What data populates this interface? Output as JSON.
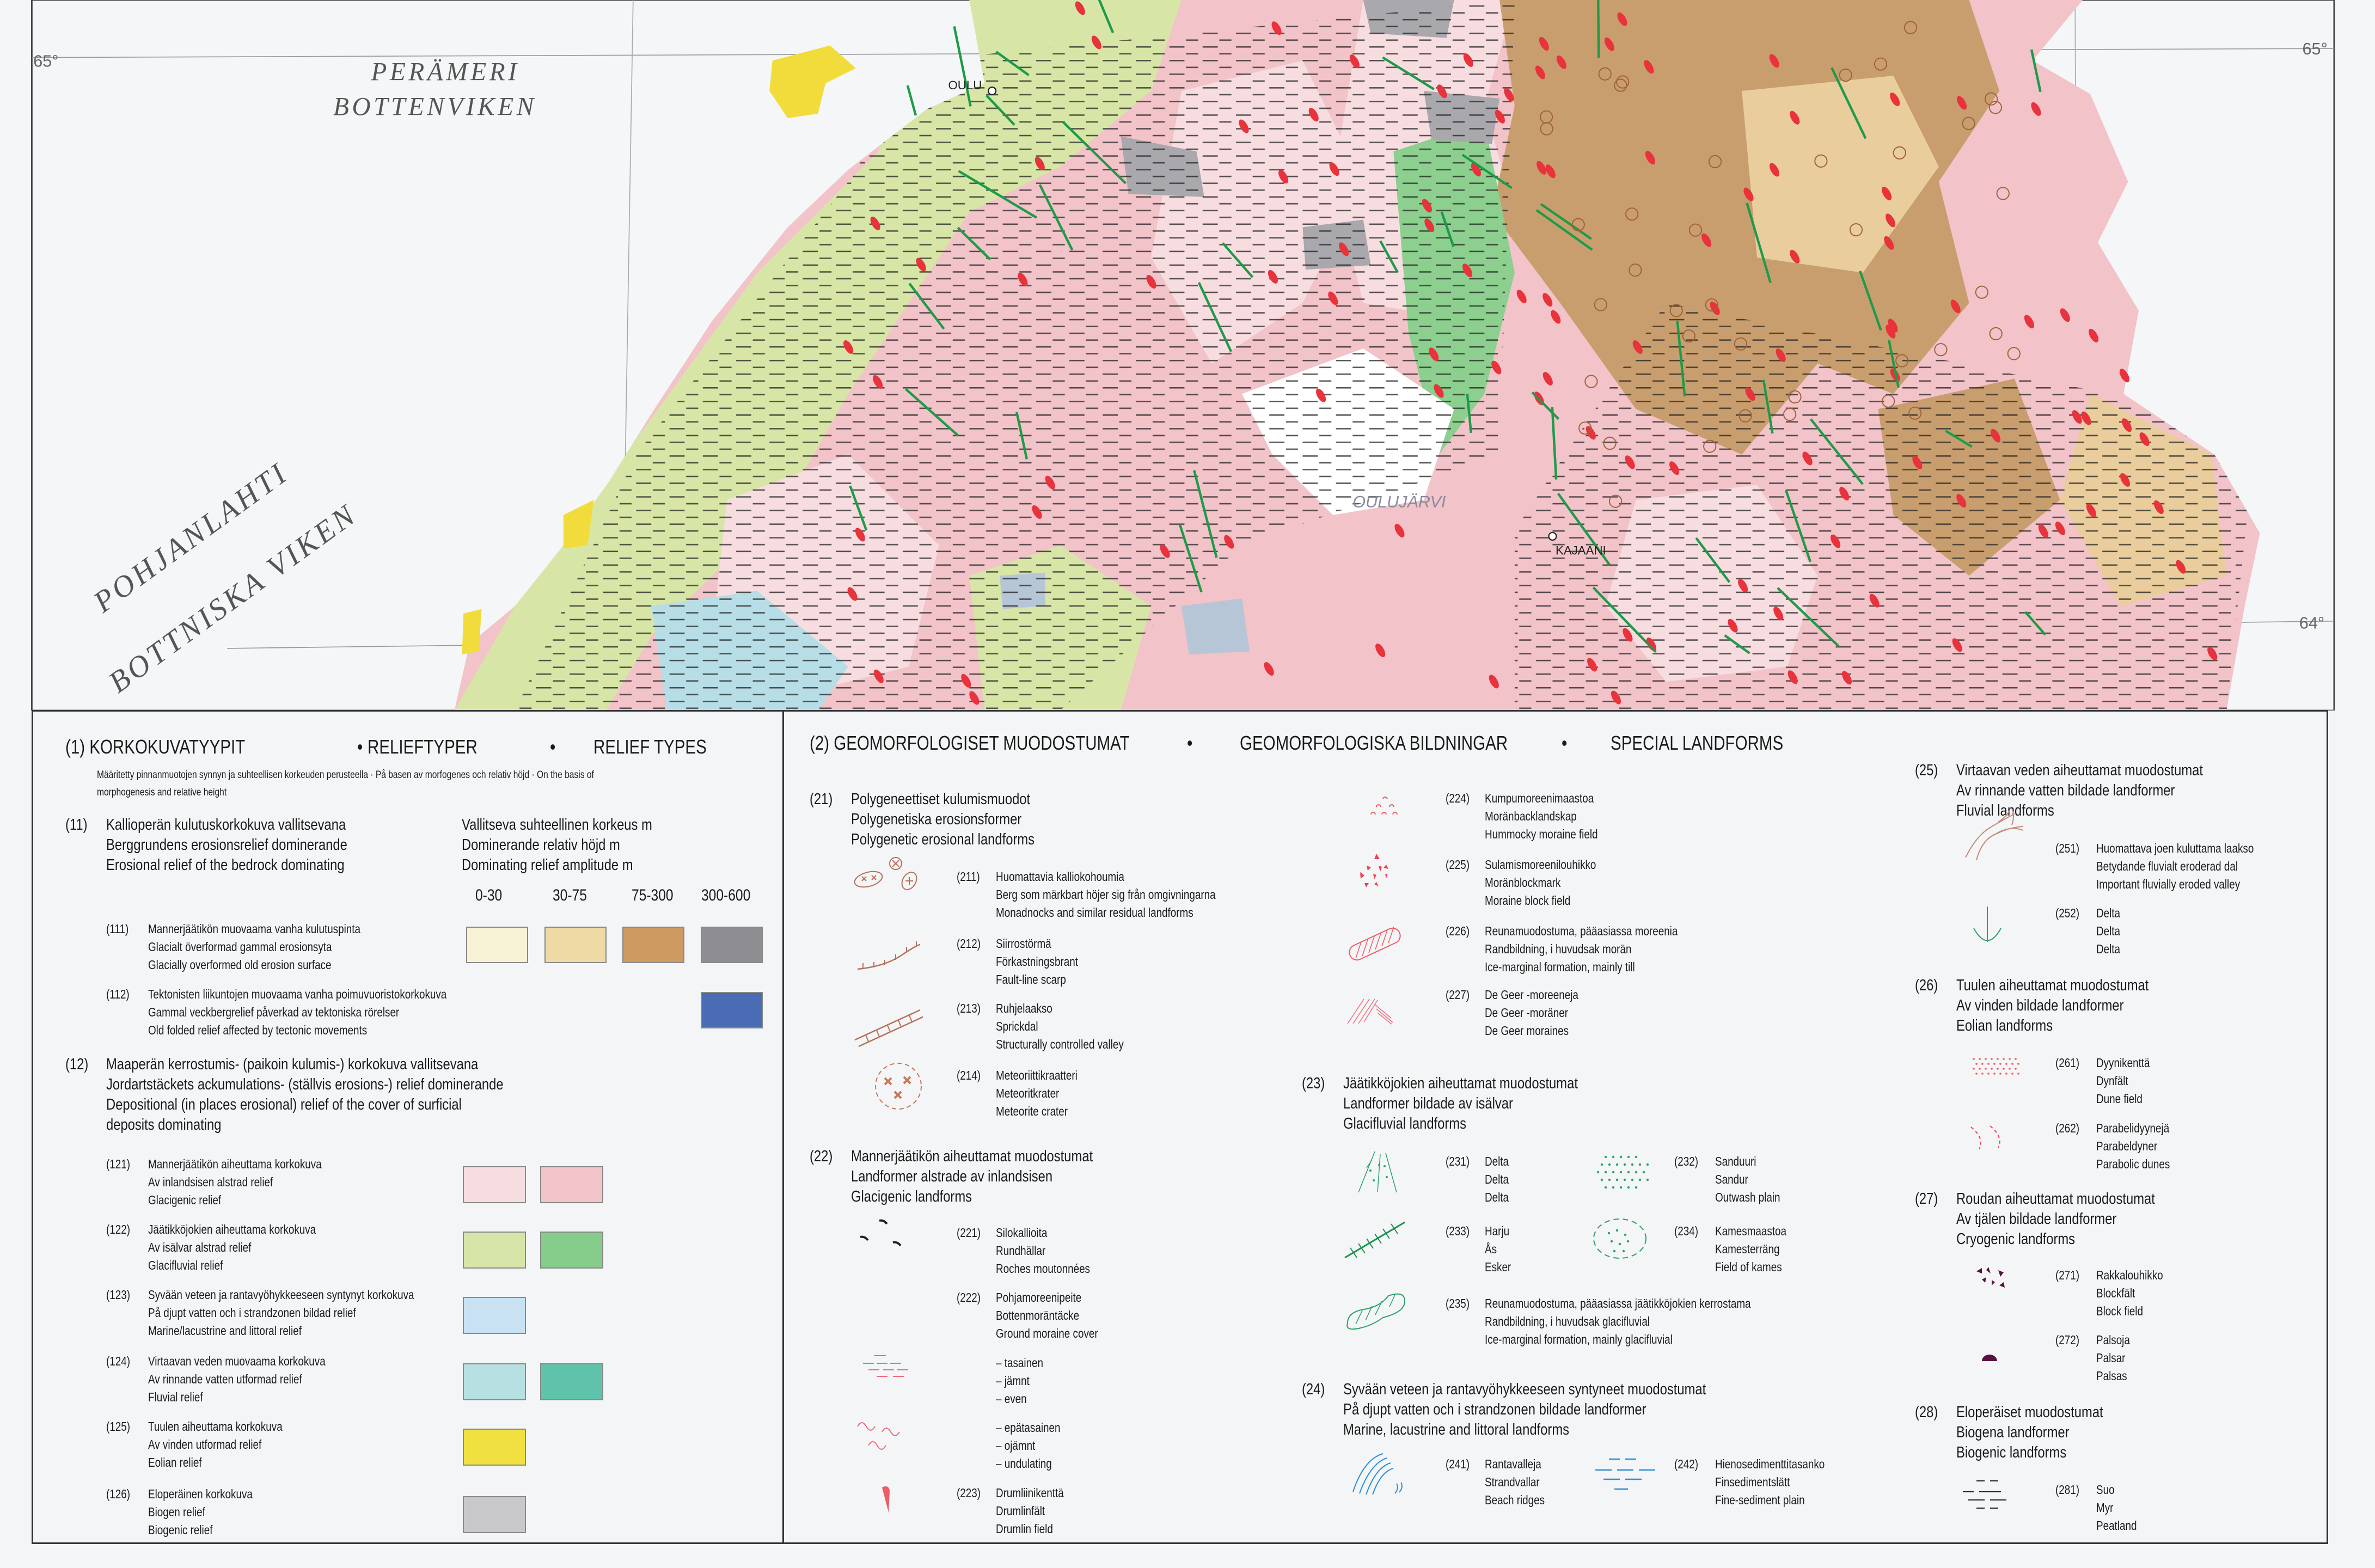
{
  "map": {
    "sea_labels": [
      {
        "lines": [
          "PERÄMERI",
          "BOTTENVIKEN"
        ]
      },
      {
        "lines": [
          "POHJANLAHTI",
          "BOTTNISKA VIKEN"
        ]
      }
    ],
    "places": [
      "OULU",
      "KAJAANI"
    ],
    "lake": "OULUJÄRVI",
    "latitudes": {
      "left_65": "65°",
      "right_65": "65°",
      "right_64": "64°"
    },
    "colors": {
      "land_pink": "#f2c3c8",
      "pale_pink": "#f7dde0",
      "light_green": "#d7e6a6",
      "green": "#8ccf8f",
      "brown": "#c99e6e",
      "tan": "#e9cd9c",
      "grey": "#a8a8ad",
      "blue_grey": "#b7c6d6",
      "yellow": "#f2dc3c",
      "drumlin_red": "#e8323c",
      "esker_green": "#1f9a4a"
    }
  },
  "relief": {
    "title": [
      "(1) KORKOKUVATYYPIT",
      "RELIEFTYPER",
      "RELIEF TYPES"
    ],
    "note": [
      "Määritetty pinnanmuotojen synnyn ja suhteellisen korkeuden perusteella · På basen av morfogenes och relativ höjd · On the basis  of",
      "morphogenesis and relative height"
    ],
    "groups": [
      {
        "code": "(11)",
        "lines": [
          "Kallioperän kulutuskorkokuva vallitsevana",
          "Berggrundens erosionsrelief dominerande",
          "Erosional relief of the bedrock dominating"
        ],
        "amplitude_header": [
          "Vallitseva suhteellinen korkeus m",
          "Dominerande relativ höjd m",
          "Dominating relief amplitude m"
        ],
        "ranges": [
          "0-30",
          "30-75",
          "75-300",
          "300-600"
        ],
        "items": [
          {
            "code": "(111)",
            "lines": [
              "Mannerjäätikön muovaama vanha kulutuspinta",
              "Glacialt överformad gammal erosionsyta",
              "Glacially overformed old erosion surface"
            ],
            "swatches": [
              "#f7f2d6",
              "#efd9a4",
              "#cf9a62",
              "#8e8e92"
            ]
          },
          {
            "code": "(112)",
            "lines": [
              "Tektonisten liikuntojen muovaama vanha poimuvuoristokorkokuva",
              "Gammal veckbergrelief påverkad av tektoniska rörelser",
              "Old folded relief affected by tectonic movements"
            ],
            "swatches": [
              "",
              "",
              "",
              "#4a6cb4"
            ]
          }
        ]
      },
      {
        "code": "(12)",
        "lines": [
          "Maaperän kerrostumis- (paikoin kulumis-) korkokuva vallitsevana",
          "Jordartstäckets ackumulations- (ställvis erosions-) relief dominerande",
          "Depositional (in places erosional) relief of the cover of surficial",
          "deposits dominating"
        ],
        "items": [
          {
            "code": "(121)",
            "lines": [
              "Mannerjäätikön aiheuttama korkokuva",
              "Av inlandsisen alstrad relief",
              "Glacigenic relief"
            ],
            "swatches": [
              "#f6dde0",
              "#f2c3c8"
            ]
          },
          {
            "code": "(122)",
            "lines": [
              "Jäätikköjokien aiheuttama korkokuva",
              "Av isälvar alstrad relief",
              "Glacifluvial relief"
            ],
            "swatches": [
              "#d6e6a8",
              "#86cc8a"
            ]
          },
          {
            "code": "(123)",
            "lines": [
              "Syvään veteen ja rantavyöhykkeeseen syntynyt korkokuva",
              "På djupt vatten och i strandzonen bildad relief",
              "Marine/lacustrine and littoral relief"
            ],
            "swatches": [
              "#c8e2f4"
            ]
          },
          {
            "code": "(124)",
            "lines": [
              "Virtaavan veden muovaama korkokuva",
              "Av rinnande vatten utformad relief",
              "Fluvial relief"
            ],
            "swatches": [
              "#b7e0e2",
              "#5fc3ac"
            ]
          },
          {
            "code": "(125)",
            "lines": [
              "Tuulen aiheuttama korkokuva",
              "Av vinden utformad relief",
              "Eolian relief"
            ],
            "swatches": [
              "#f0e040"
            ]
          },
          {
            "code": "(126)",
            "lines": [
              "Eloperäinen korkokuva",
              "Biogen relief",
              "Biogenic relief"
            ],
            "swatches": [
              "#c8c8ca"
            ]
          }
        ]
      }
    ]
  },
  "landforms": {
    "title": [
      "(2) GEOMORFOLOGISET MUODOSTUMAT",
      "GEOMORFOLOGISKA BILDNINGAR",
      "SPECIAL LANDFORMS"
    ],
    "groups": [
      {
        "code": "(21)",
        "lines": [
          "Polygeneettiset kulumismuodot",
          "Polygenetiska erosionsformer",
          "Polygenetic erosional landforms"
        ],
        "items": [
          {
            "code": "(211)",
            "symbol": "monadnock-icon",
            "lines": [
              "Huomattavia kalliokohoumia",
              "Berg som märkbart höjer sig från omgivningarna",
              "Monadnocks and similar residual landforms"
            ]
          },
          {
            "code": "(212)",
            "symbol": "fault-scarp-icon",
            "lines": [
              "Siirrostörmä",
              "Förkastningsbrant",
              "Fault-line scarp"
            ]
          },
          {
            "code": "(213)",
            "symbol": "structural-valley-icon",
            "lines": [
              "Ruhjelaakso",
              "Sprickdal",
              "Structurally controlled valley"
            ]
          },
          {
            "code": "(214)",
            "symbol": "meteorite-crater-icon",
            "lines": [
              "Meteoriittikraatteri",
              "Meteoritkrater",
              "Meteorite crater"
            ]
          }
        ]
      },
      {
        "code": "(22)",
        "lines": [
          "Mannerjäätikön aiheuttamat muodostumat",
          "Landformer alstrade av inlandsisen",
          "Glacigenic landforms"
        ],
        "items": [
          {
            "code": "(221)",
            "symbol": "roches-moutonnees-icon",
            "lines": [
              "Silokallioita",
              "Rundhällar",
              "Roches moutonnées"
            ]
          },
          {
            "code": "(222)",
            "symbol": "",
            "lines": [
              "Pohjamoreenipeite",
              "Bottenmoräntäcke",
              "Ground moraine cover"
            ]
          },
          {
            "code": "",
            "symbol": "even-moraine-icon",
            "lines": [
              "– tasainen",
              "– jämnt",
              "– even"
            ]
          },
          {
            "code": "",
            "symbol": "undulating-moraine-icon",
            "lines": [
              "– epätasainen",
              "– ojämnt",
              "– undulating"
            ]
          },
          {
            "code": "(223)",
            "symbol": "drumlin-icon",
            "lines": [
              "Drumliinikenttä",
              "Drumlinfält",
              "Drumlin field"
            ]
          },
          {
            "code": "(224)",
            "symbol": "hummocky-moraine-icon",
            "lines": [
              "Kumpumoreenimaastoa",
              "Moränbacklandskap",
              "Hummocky moraine field"
            ]
          },
          {
            "code": "(225)",
            "symbol": "moraine-block-icon",
            "lines": [
              "Sulamismoreenilouhikko",
              "Moränblockmark",
              "Moraine block field"
            ]
          },
          {
            "code": "(226)",
            "symbol": "ice-marginal-till-icon",
            "lines": [
              "Reunamuodostuma, pääasiassa moreenia",
              "Randbildning, i huvudsak morän",
              "Ice-marginal formation, mainly till"
            ]
          },
          {
            "code": "(227)",
            "symbol": "de-geer-moraine-icon",
            "lines": [
              "De Geer -moreeneja",
              "De Geer -moräner",
              "De Geer moraines"
            ]
          }
        ]
      },
      {
        "code": "(23)",
        "lines": [
          "Jäätikköjokien aiheuttamat muodostumat",
          "Landformer bildade av isälvar",
          "Glacifluvial landforms"
        ],
        "items": [
          {
            "code": "(231)",
            "symbol": "glacifluvial-delta-icon",
            "lines": [
              "Delta",
              "Delta",
              "Delta"
            ]
          },
          {
            "code": "(232)",
            "symbol": "outwash-plain-icon",
            "lines": [
              "Sanduuri",
              "Sandur",
              "Outwash plain"
            ]
          },
          {
            "code": "(233)",
            "symbol": "esker-icon",
            "lines": [
              "Harju",
              "Ås",
              "Esker"
            ]
          },
          {
            "code": "(234)",
            "symbol": "kames-icon",
            "lines": [
              "Kamesmaastoa",
              "Kamesterräng",
              "Field of kames"
            ]
          },
          {
            "code": "(235)",
            "symbol": "ice-marginal-glacifluvial-icon",
            "lines": [
              "Reunamuodostuma, pääasiassa jäätikköjokien kerrostama",
              "Randbildning, i huvudsak glacifluvial",
              "Ice-marginal formation, mainly glacifluvial"
            ]
          }
        ]
      },
      {
        "code": "(24)",
        "lines": [
          "Syvään veteen ja rantavyöhykkeeseen syntyneet muodostumat",
          "På djupt vatten och i strandzonen bildade landformer",
          "Marine, lacustrine and littoral landforms"
        ],
        "items": [
          {
            "code": "(241)",
            "symbol": "beach-ridges-icon",
            "lines": [
              "Rantavalleja",
              "Strandvallar",
              "Beach ridges"
            ]
          },
          {
            "code": "(242)",
            "symbol": "fine-sediment-plain-icon",
            "lines": [
              "Hienosedimenttitasanko",
              "Finsedimentslätt",
              "Fine-sediment plain"
            ]
          }
        ]
      },
      {
        "code": "(25)",
        "lines": [
          "Virtaavan veden aiheuttamat muodostumat",
          "Av rinnande vatten bildade landformer",
          "Fluvial landforms"
        ],
        "items": [
          {
            "code": "(251)",
            "symbol": "fluvial-valley-icon",
            "lines": [
              "Huomattava joen kuluttama laakso",
              "Betydande fluvialt eroderad dal",
              "Important fluvially eroded valley"
            ]
          },
          {
            "code": "(252)",
            "symbol": "fluvial-delta-icon",
            "lines": [
              "Delta",
              "Delta",
              "Delta"
            ]
          }
        ]
      },
      {
        "code": "(26)",
        "lines": [
          "Tuulen aiheuttamat muodostumat",
          "Av vinden bildade landformer",
          "Eolian landforms"
        ],
        "items": [
          {
            "code": "(261)",
            "symbol": "dune-field-icon",
            "lines": [
              "Dyynikenttä",
              "Dynfält",
              "Dune field"
            ]
          },
          {
            "code": "(262)",
            "symbol": "parabolic-dunes-icon",
            "lines": [
              "Parabelidyynejä",
              "Parabeldyner",
              "Parabolic dunes"
            ]
          }
        ]
      },
      {
        "code": "(27)",
        "lines": [
          "Roudan aiheuttamat muodostumat",
          "Av tjälen bildade landformer",
          "Cryogenic landforms"
        ],
        "items": [
          {
            "code": "(271)",
            "symbol": "block-field-icon",
            "lines": [
              "Rakkalouhikko",
              "Blockfält",
              "Block field"
            ]
          },
          {
            "code": "(272)",
            "symbol": "palsa-icon",
            "lines": [
              "Palsoja",
              "Palsar",
              "Palsas"
            ]
          }
        ]
      },
      {
        "code": "(28)",
        "lines": [
          "Eloperäiset muodostumat",
          "Biogena landformer",
          "Biogenic landforms"
        ],
        "items": [
          {
            "code": "(281)",
            "symbol": "peatland-icon",
            "lines": [
              "Suo",
              "Myr",
              "Peatland"
            ]
          }
        ]
      }
    ]
  }
}
